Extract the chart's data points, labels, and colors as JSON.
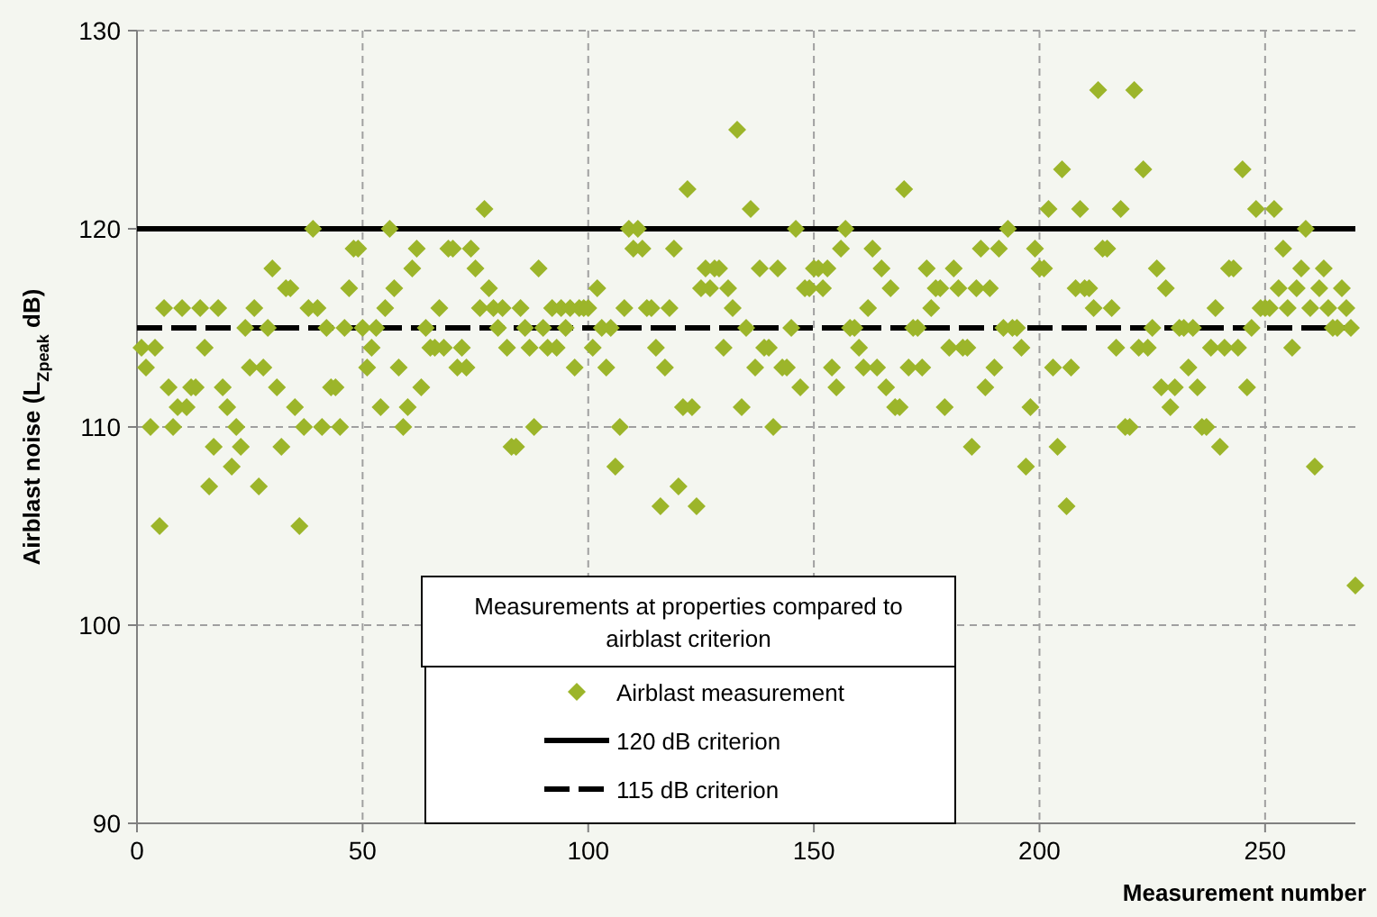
{
  "chart_data": {
    "type": "scatter",
    "xlabel": "Measurement number",
    "ylabel": "Airblast noise (L$_{Zpeak}$ dB)",
    "legend_title": "Measurements at properties compared to airblast criterion",
    "legend": "bottom",
    "grid": true,
    "marker": "diamond",
    "xlim": [
      0,
      270
    ],
    "xticks": [
      0,
      50,
      100,
      150,
      200,
      250
    ],
    "ylim": [
      90,
      130
    ],
    "yticks": [
      90,
      100,
      110,
      120,
      130
    ],
    "series": [
      {
        "name": "Airblast measurement",
        "color": "#9cb52a",
        "x": [
          1,
          2,
          3,
          4,
          5,
          6,
          7,
          8,
          9,
          10,
          11,
          12,
          13,
          14,
          15,
          16,
          17,
          18,
          19,
          20,
          21,
          22,
          23,
          24,
          25,
          26,
          27,
          28,
          29,
          30,
          31,
          32,
          33,
          34,
          35,
          36,
          37,
          38,
          39,
          40,
          41,
          42,
          43,
          44,
          45,
          46,
          47,
          48,
          49,
          50,
          51,
          52,
          53,
          54,
          55,
          56,
          57,
          58,
          59,
          60,
          61,
          62,
          63,
          64,
          65,
          66,
          67,
          68,
          69,
          70,
          71,
          72,
          73,
          74,
          75,
          76,
          77,
          78,
          79,
          80,
          81,
          82,
          83,
          84,
          85,
          86,
          87,
          88,
          89,
          90,
          91,
          92,
          93,
          94,
          95,
          96,
          97,
          98,
          99,
          100,
          101,
          102,
          103,
          104,
          105,
          106,
          107,
          108,
          109,
          110,
          111,
          112,
          113,
          114,
          115,
          116,
          117,
          118,
          119,
          120,
          121,
          122,
          123,
          124,
          125,
          126,
          127,
          128,
          129,
          130,
          131,
          132,
          133,
          134,
          135,
          136,
          137,
          138,
          139,
          140,
          141,
          142,
          143,
          144,
          145,
          146,
          147,
          148,
          149,
          150,
          151,
          152,
          153,
          154,
          155,
          156,
          157,
          158,
          159,
          160,
          161,
          162,
          163,
          164,
          165,
          166,
          167,
          168,
          169,
          170,
          171,
          172,
          173,
          174,
          175,
          176,
          177,
          178,
          179,
          180,
          181,
          182,
          183,
          184,
          185,
          186,
          187,
          188,
          189,
          190,
          191,
          192,
          193,
          194,
          195,
          196,
          197,
          198,
          199,
          200,
          201,
          202,
          203,
          204,
          205,
          206,
          207,
          208,
          209,
          210,
          211,
          212,
          213,
          214,
          215,
          216,
          217,
          218,
          219,
          220,
          221,
          222,
          223,
          224,
          225,
          226,
          227,
          228,
          229,
          230,
          231,
          232,
          233,
          234,
          235,
          236,
          237,
          238,
          239,
          240,
          241,
          242,
          243,
          244,
          245,
          246,
          247,
          248,
          249,
          250,
          251,
          252,
          253,
          254,
          255,
          256,
          257,
          258,
          259,
          260,
          261,
          262,
          263,
          264,
          265,
          266,
          267,
          268,
          269,
          270
        ],
        "values": [
          114,
          113,
          110,
          114,
          105,
          116,
          112,
          110,
          111,
          116,
          111,
          112,
          112,
          116,
          114,
          107,
          109,
          116,
          112,
          111,
          108,
          110,
          109,
          115,
          113,
          116,
          107,
          113,
          115,
          118,
          112,
          109,
          117,
          117,
          111,
          105,
          110,
          116,
          120,
          116,
          110,
          115,
          112,
          112,
          110,
          115,
          117,
          119,
          119,
          115,
          113,
          114,
          115,
          111,
          116,
          120,
          117,
          113,
          110,
          111,
          118,
          119,
          112,
          115,
          114,
          114,
          116,
          114,
          119,
          119,
          113,
          114,
          113,
          119,
          118,
          116,
          121,
          117,
          116,
          115,
          116,
          114,
          109,
          109,
          116,
          115,
          114,
          110,
          118,
          115,
          114,
          116,
          114,
          116,
          115,
          116,
          113,
          116,
          116,
          116,
          114,
          117,
          115,
          113,
          115,
          108,
          110,
          116,
          120,
          119,
          120,
          119,
          116,
          116,
          114,
          106,
          113,
          116,
          119,
          107,
          111,
          122,
          111,
          106,
          117,
          118,
          117,
          118,
          118,
          114,
          117,
          116,
          125,
          111,
          115,
          121,
          113,
          118,
          114,
          114,
          110,
          118,
          113,
          113,
          115,
          120,
          112,
          117,
          117,
          118,
          118,
          117,
          118,
          113,
          112,
          119,
          120,
          115,
          115,
          114,
          113,
          116,
          119,
          113,
          118,
          112,
          117,
          111,
          111,
          122,
          113,
          115,
          115,
          113,
          118,
          116,
          117,
          117,
          111,
          114,
          118,
          117,
          114,
          114,
          109,
          117,
          119,
          112,
          117,
          113,
          119,
          115,
          120,
          115,
          115,
          114,
          108,
          111,
          119,
          118,
          118,
          121,
          113,
          109,
          123,
          106,
          113,
          117,
          121,
          117,
          117,
          116,
          127,
          119,
          119,
          116,
          114,
          121,
          110,
          110,
          127,
          114,
          123,
          114,
          115,
          118,
          112,
          117,
          111,
          112,
          115,
          115,
          113,
          115,
          112,
          110,
          110,
          114,
          116,
          109,
          114,
          118,
          118,
          114,
          123,
          112,
          115,
          121,
          116,
          116,
          116,
          121,
          117,
          119,
          116,
          114,
          117,
          118,
          120,
          116,
          108,
          117,
          118,
          116,
          115,
          115,
          117,
          116,
          115,
          102
        ]
      }
    ],
    "ref_lines": [
      {
        "axis": "y",
        "value": 120,
        "label": "120 dB criterion",
        "color": "#000000",
        "line_style": "solid"
      },
      {
        "axis": "y",
        "value": 115,
        "label": "115 dB criterion",
        "color": "#000000",
        "line_style": "dashed"
      }
    ]
  }
}
